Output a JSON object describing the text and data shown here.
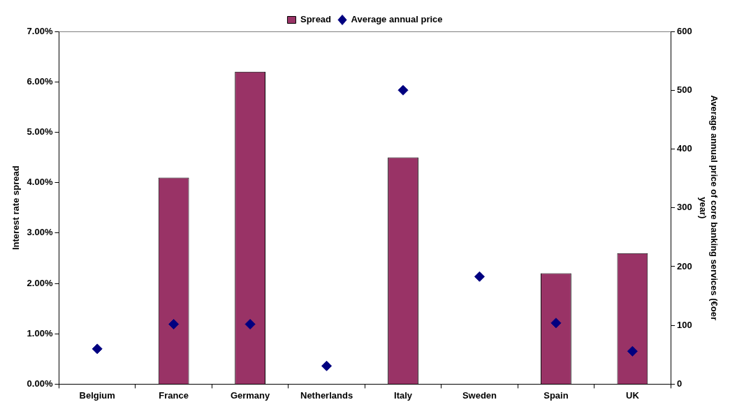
{
  "chart_data": {
    "type": "bar",
    "categories": [
      "Belgium",
      "France",
      "Germany",
      "Netherlands",
      "Italy",
      "Sweden",
      "Spain",
      "UK"
    ],
    "series": [
      {
        "name": "Spread",
        "color": "#993366",
        "values": [
          null,
          4.1,
          6.2,
          null,
          4.5,
          null,
          2.2,
          2.6
        ]
      },
      {
        "name": "Average annual price",
        "type": "scatter",
        "axis": "y2",
        "color": "#000080",
        "values": [
          60,
          102,
          102,
          31,
          500,
          183,
          104,
          56
        ]
      }
    ],
    "ylabel": "Interest rate spread",
    "y2label": "Average annual price of core banking services (€oer year)",
    "ylim": [
      0,
      7
    ],
    "yticks": [
      {
        "value": 0,
        "label": "0.00%"
      },
      {
        "value": 1,
        "label": "1.00%"
      },
      {
        "value": 2,
        "label": "2.00%"
      },
      {
        "value": 3,
        "label": "3.00%"
      },
      {
        "value": 4,
        "label": "4.00%"
      },
      {
        "value": 5,
        "label": "5.00%"
      },
      {
        "value": 6,
        "label": "6.00%"
      },
      {
        "value": 7,
        "label": "7.00%"
      }
    ],
    "y2lim": [
      0,
      600
    ],
    "y2ticks": [
      0,
      100,
      200,
      300,
      400,
      500,
      600
    ],
    "legend": "top",
    "grid": false,
    "marker": "diamond"
  }
}
